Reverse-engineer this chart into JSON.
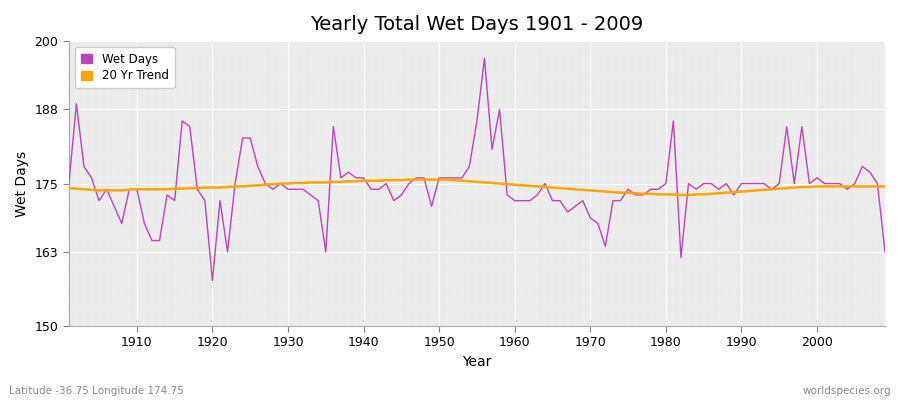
{
  "title": "Yearly Total Wet Days 1901 - 2009",
  "xlabel": "Year",
  "ylabel": "Wet Days",
  "ylim": [
    150,
    200
  ],
  "xlim": [
    1901,
    2009
  ],
  "yticks": [
    150,
    163,
    175,
    188,
    200
  ],
  "xticks": [
    1910,
    1920,
    1930,
    1940,
    1950,
    1960,
    1970,
    1980,
    1990,
    2000
  ],
  "wet_days_color": "#BB44BB",
  "trend_color": "#FFA500",
  "fig_bg_color": "#FFFFFF",
  "plot_bg_color": "#EBEBEB",
  "legend_label_wetdays": "Wet Days",
  "legend_label_trend": "20 Yr Trend",
  "footer_left": "Latitude -36.75 Longitude 174.75",
  "footer_right": "worldspecies.org",
  "years": [
    1901,
    1902,
    1903,
    1904,
    1905,
    1906,
    1907,
    1908,
    1909,
    1910,
    1911,
    1912,
    1913,
    1914,
    1915,
    1916,
    1917,
    1918,
    1919,
    1920,
    1921,
    1922,
    1923,
    1924,
    1925,
    1926,
    1927,
    1928,
    1929,
    1930,
    1931,
    1932,
    1933,
    1934,
    1935,
    1936,
    1937,
    1938,
    1939,
    1940,
    1941,
    1942,
    1943,
    1944,
    1945,
    1946,
    1947,
    1948,
    1949,
    1950,
    1951,
    1952,
    1953,
    1954,
    1955,
    1956,
    1957,
    1958,
    1959,
    1960,
    1961,
    1962,
    1963,
    1964,
    1965,
    1966,
    1967,
    1968,
    1969,
    1970,
    1971,
    1972,
    1973,
    1974,
    1975,
    1976,
    1977,
    1978,
    1979,
    1980,
    1981,
    1982,
    1983,
    1984,
    1985,
    1986,
    1987,
    1988,
    1989,
    1990,
    1991,
    1992,
    1993,
    1994,
    1995,
    1996,
    1997,
    1998,
    1999,
    2000,
    2001,
    2002,
    2003,
    2004,
    2005,
    2006,
    2007,
    2008,
    2009
  ],
  "wet_days": [
    175,
    189,
    178,
    176,
    172,
    174,
    171,
    168,
    174,
    174,
    168,
    165,
    165,
    173,
    172,
    186,
    185,
    174,
    172,
    158,
    172,
    163,
    175,
    183,
    183,
    178,
    175,
    174,
    175,
    174,
    174,
    174,
    173,
    172,
    163,
    185,
    176,
    177,
    176,
    176,
    174,
    174,
    175,
    172,
    173,
    175,
    176,
    176,
    171,
    176,
    176,
    176,
    176,
    178,
    186,
    197,
    181,
    188,
    173,
    172,
    172,
    172,
    173,
    175,
    172,
    172,
    170,
    171,
    172,
    169,
    168,
    164,
    172,
    172,
    174,
    173,
    173,
    174,
    174,
    175,
    186,
    162,
    175,
    174,
    175,
    175,
    174,
    175,
    173,
    175,
    175,
    175,
    175,
    174,
    175,
    185,
    175,
    185,
    175,
    176,
    175,
    175,
    175,
    174,
    175,
    178,
    177,
    175,
    163
  ],
  "trend": [
    174.2,
    174.1,
    174.0,
    173.9,
    173.8,
    173.8,
    173.8,
    173.8,
    173.9,
    174.0,
    174.0,
    174.0,
    174.0,
    174.0,
    174.1,
    174.1,
    174.2,
    174.2,
    174.3,
    174.3,
    174.3,
    174.4,
    174.5,
    174.5,
    174.6,
    174.7,
    174.8,
    174.9,
    175.0,
    175.0,
    175.1,
    175.1,
    175.2,
    175.2,
    175.2,
    175.3,
    175.3,
    175.4,
    175.4,
    175.5,
    175.5,
    175.5,
    175.6,
    175.6,
    175.6,
    175.7,
    175.7,
    175.7,
    175.7,
    175.7,
    175.7,
    175.6,
    175.5,
    175.4,
    175.3,
    175.2,
    175.1,
    175.0,
    174.9,
    174.8,
    174.7,
    174.6,
    174.5,
    174.4,
    174.3,
    174.2,
    174.1,
    174.0,
    173.9,
    173.8,
    173.7,
    173.6,
    173.5,
    173.4,
    173.4,
    173.3,
    173.2,
    173.2,
    173.1,
    173.1,
    173.1,
    173.0,
    173.0,
    173.1,
    173.1,
    173.2,
    173.3,
    173.4,
    173.5,
    173.6,
    173.7,
    173.8,
    173.9,
    174.0,
    174.1,
    174.2,
    174.3,
    174.4,
    174.4,
    174.5,
    174.5,
    174.5,
    174.5,
    174.5,
    174.5,
    174.5,
    174.5,
    174.5,
    174.5
  ]
}
